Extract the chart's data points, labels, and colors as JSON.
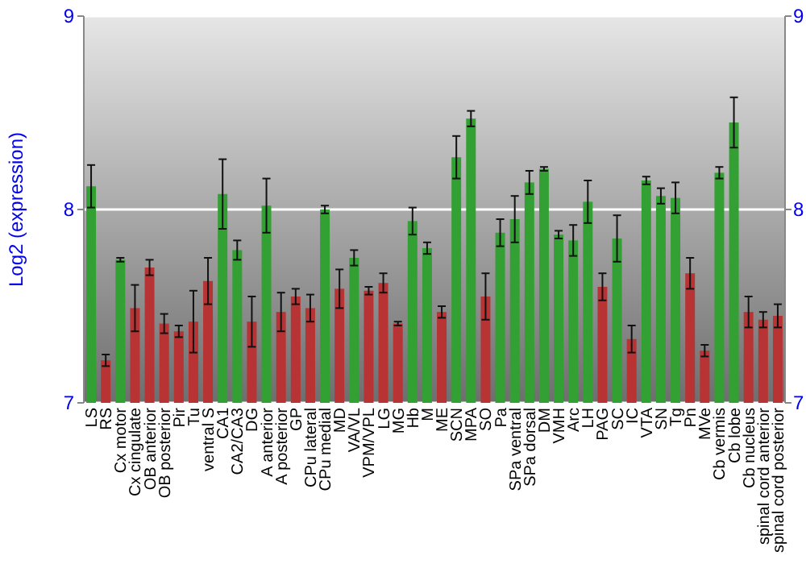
{
  "chart_data": {
    "type": "bar",
    "ylabel": "Log2 (expression)",
    "categories": [
      "LS",
      "RS",
      "Cx motor",
      "Cx cingulate",
      "OB anterior",
      "OB posterior",
      "Pir",
      "Tu",
      "ventral S",
      "CA1",
      "CA2/CA3",
      "DG",
      "A anterior",
      "A posterior",
      "GP",
      "CPu lateral",
      "CPu medial",
      "MD",
      "VA/VL",
      "VPM/VPL",
      "LG",
      "MG",
      "Hb",
      "M",
      "ME",
      "SCN",
      "MPA",
      "SO",
      "Pa",
      "SPa ventral",
      "SPa dorsal",
      "DM",
      "VMH",
      "Arc",
      "LH",
      "PAG",
      "SC",
      "IC",
      "VTA",
      "SN",
      "Tg",
      "Pn",
      "MVe",
      "Cb vermis",
      "Cb lobe",
      "Cb nucleus",
      "spinal cord anterior",
      "spinal cord posterior"
    ],
    "values": [
      8.12,
      7.22,
      7.74,
      7.49,
      7.7,
      7.41,
      7.37,
      7.42,
      7.63,
      8.08,
      7.79,
      7.42,
      8.02,
      7.47,
      7.55,
      7.49,
      8.0,
      7.59,
      7.75,
      7.58,
      7.62,
      7.41,
      7.94,
      7.8,
      7.47,
      8.27,
      8.47,
      7.55,
      7.88,
      7.95,
      8.14,
      8.21,
      7.87,
      7.84,
      8.04,
      7.6,
      7.85,
      7.33,
      8.15,
      8.07,
      8.06,
      7.67,
      7.27,
      8.19,
      8.45,
      7.47,
      7.43,
      7.45
    ],
    "errors": [
      0.11,
      0.03,
      0.01,
      0.12,
      0.04,
      0.05,
      0.03,
      0.16,
      0.12,
      0.18,
      0.05,
      0.13,
      0.14,
      0.1,
      0.04,
      0.07,
      0.02,
      0.1,
      0.04,
      0.02,
      0.05,
      0.01,
      0.07,
      0.03,
      0.03,
      0.11,
      0.04,
      0.12,
      0.07,
      0.12,
      0.06,
      0.01,
      0.02,
      0.08,
      0.11,
      0.07,
      0.12,
      0.07,
      0.02,
      0.04,
      0.08,
      0.08,
      0.03,
      0.03,
      0.13,
      0.08,
      0.04,
      0.06
    ],
    "colors": [
      "#33a033",
      "#b83333",
      "#33a033",
      "#b83333",
      "#b83333",
      "#b83333",
      "#b83333",
      "#b83333",
      "#b83333",
      "#33a033",
      "#33a033",
      "#b83333",
      "#33a033",
      "#b83333",
      "#b83333",
      "#b83333",
      "#33a033",
      "#b83333",
      "#33a033",
      "#b83333",
      "#b83333",
      "#b83333",
      "#33a033",
      "#33a033",
      "#b83333",
      "#33a033",
      "#33a033",
      "#b83333",
      "#33a033",
      "#33a033",
      "#33a033",
      "#33a033",
      "#33a033",
      "#33a033",
      "#33a033",
      "#b83333",
      "#33a033",
      "#b83333",
      "#33a033",
      "#33a033",
      "#33a033",
      "#b83333",
      "#b83333",
      "#33a033",
      "#33a033",
      "#b83333",
      "#b83333",
      "#b83333"
    ],
    "ylim": [
      7,
      9
    ],
    "yticks": [
      7,
      8,
      9
    ],
    "y2lim": [
      7,
      9
    ],
    "y2ticks": [
      7,
      8,
      9
    ],
    "grid": "y"
  }
}
